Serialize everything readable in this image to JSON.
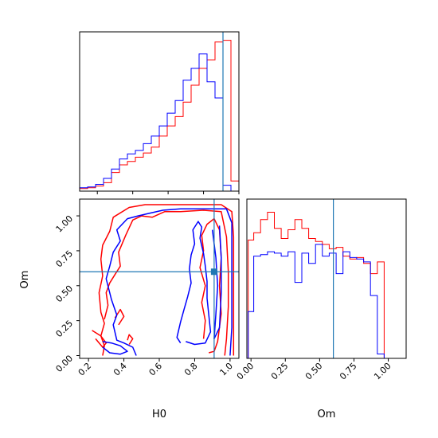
{
  "colors": {
    "series_a": "#ff0000",
    "series_b": "#0000ff",
    "truth": "#1f77b4",
    "axes": "#000000"
  },
  "chart_data": [
    {
      "type": "histogram",
      "panel": "top-left",
      "variable": "H0",
      "truth_value": 0.91,
      "bin_edges": [
        0.1,
        0.145,
        0.19,
        0.235,
        0.28,
        0.325,
        0.37,
        0.415,
        0.46,
        0.505,
        0.55,
        0.595,
        0.64,
        0.685,
        0.73,
        0.775,
        0.82,
        0.865,
        0.91,
        0.955,
        1.0
      ],
      "series": [
        {
          "color_key": "series_a",
          "values": [
            0.3,
            0.4,
            0.6,
            1.0,
            2.2,
            3.1,
            3.5,
            4.0,
            4.5,
            5.2,
            6.5,
            7.7,
            8.8,
            10.5,
            12.5,
            14.5,
            15.5,
            17.6,
            17.8,
            1.2
          ]
        },
        {
          "color_key": "series_b",
          "values": [
            0.4,
            0.5,
            0.8,
            1.5,
            2.6,
            3.8,
            4.4,
            4.8,
            5.6,
            6.5,
            7.7,
            9.2,
            10.7,
            13.1,
            14.5,
            16.2,
            12.9,
            11.0,
            0.7,
            0.0
          ]
        }
      ],
      "xlim": [
        0.1,
        1.0
      ],
      "x_ticks": [
        0.2,
        0.4,
        0.6,
        0.8,
        1.0
      ],
      "ylim": [
        0,
        18.8
      ],
      "grid": false
    },
    {
      "type": "contour",
      "panel": "bottom-left",
      "x_variable": "H0",
      "y_variable": "Om",
      "xlabel": "H0",
      "ylabel": "Om",
      "xlim": [
        0.15,
        1.05
      ],
      "ylim": [
        -0.02,
        1.12
      ],
      "x_ticks": [
        0.2,
        0.4,
        0.6,
        0.8,
        1.0
      ],
      "x_tick_labels": [
        "0.2",
        "0.4",
        "0.6",
        "0.8",
        "1.0"
      ],
      "y_ticks": [
        0.0,
        0.25,
        0.5,
        0.75,
        1.0
      ],
      "y_tick_labels": [
        "0.00",
        "0.25",
        "0.50",
        "0.75",
        "1.00"
      ],
      "truth": {
        "x": 0.91,
        "y": 0.6
      },
      "series": [
        {
          "color_key": "series_a",
          "contours": [
            [
              [
                0.28,
                0.0
              ],
              [
                0.29,
                0.07
              ],
              [
                0.27,
                0.14
              ],
              [
                0.29,
                0.23
              ],
              [
                0.27,
                0.31
              ],
              [
                0.26,
                0.45
              ],
              [
                0.28,
                0.57
              ],
              [
                0.27,
                0.69
              ],
              [
                0.28,
                0.79
              ],
              [
                0.32,
                0.89
              ],
              [
                0.34,
                0.99
              ],
              [
                0.43,
                1.06
              ],
              [
                0.52,
                1.08
              ],
              [
                0.65,
                1.08
              ],
              [
                0.8,
                1.08
              ],
              [
                0.95,
                1.08
              ],
              [
                1.01,
                1.03
              ],
              [
                1.02,
                0.85
              ],
              [
                1.02,
                0.6
              ],
              [
                1.02,
                0.35
              ],
              [
                1.02,
                0.15
              ],
              [
                1.02,
                0.0
              ]
            ],
            [
              [
                0.22,
                0.18
              ],
              [
                0.27,
                0.14
              ],
              [
                0.3,
                0.09
              ],
              [
                0.28,
                0.06
              ],
              [
                0.24,
                0.12
              ]
            ],
            [
              [
                0.29,
                0.26
              ],
              [
                0.31,
                0.36
              ],
              [
                0.3,
                0.45
              ],
              [
                0.32,
                0.52
              ],
              [
                0.35,
                0.58
              ],
              [
                0.38,
                0.64
              ],
              [
                0.37,
                0.74
              ],
              [
                0.41,
                0.86
              ],
              [
                0.45,
                0.97
              ],
              [
                0.5,
                1.0
              ],
              [
                0.56,
                0.99
              ],
              [
                0.63,
                1.03
              ],
              [
                0.72,
                1.03
              ],
              [
                0.85,
                1.04
              ],
              [
                0.95,
                1.03
              ],
              [
                0.98,
                0.85
              ],
              [
                0.99,
                0.6
              ],
              [
                0.99,
                0.35
              ],
              [
                0.98,
                0.12
              ],
              [
                0.97,
                0.0
              ]
            ],
            [
              [
                0.85,
                0.12
              ],
              [
                0.86,
                0.25
              ],
              [
                0.84,
                0.38
              ],
              [
                0.86,
                0.5
              ],
              [
                0.83,
                0.63
              ],
              [
                0.85,
                0.75
              ],
              [
                0.84,
                0.86
              ],
              [
                0.87,
                0.94
              ],
              [
                0.91,
                0.98
              ],
              [
                0.94,
                0.9
              ],
              [
                0.95,
                0.7
              ],
              [
                0.94,
                0.5
              ],
              [
                0.95,
                0.3
              ],
              [
                0.93,
                0.1
              ],
              [
                0.91,
                0.03
              ],
              [
                0.88,
                0.02
              ]
            ],
            [
              [
                0.37,
                0.22
              ],
              [
                0.4,
                0.28
              ],
              [
                0.38,
                0.33
              ],
              [
                0.35,
                0.27
              ]
            ],
            [
              [
                0.43,
                0.08
              ],
              [
                0.45,
                0.12
              ],
              [
                0.43,
                0.15
              ],
              [
                0.42,
                0.11
              ]
            ]
          ]
        },
        {
          "color_key": "series_b",
          "contours": [
            [
              [
                0.47,
                0.0
              ],
              [
                0.45,
                0.06
              ],
              [
                0.4,
                0.09
              ],
              [
                0.36,
                0.11
              ],
              [
                0.34,
                0.22
              ],
              [
                0.36,
                0.29
              ],
              [
                0.33,
                0.4
              ],
              [
                0.3,
                0.55
              ],
              [
                0.32,
                0.64
              ],
              [
                0.34,
                0.74
              ],
              [
                0.38,
                0.82
              ],
              [
                0.36,
                0.9
              ],
              [
                0.42,
                0.98
              ],
              [
                0.48,
                1.0
              ],
              [
                0.55,
                1.02
              ],
              [
                0.62,
                1.04
              ],
              [
                0.72,
                1.05
              ],
              [
                0.85,
                1.05
              ],
              [
                0.98,
                1.05
              ],
              [
                1.01,
                0.95
              ],
              [
                1.01,
                0.8
              ],
              [
                1.01,
                0.6
              ],
              [
                1.01,
                0.4
              ],
              [
                1.01,
                0.2
              ],
              [
                1.0,
                0.0
              ]
            ],
            [
              [
                0.28,
                0.1
              ],
              [
                0.33,
                0.09
              ],
              [
                0.38,
                0.07
              ],
              [
                0.42,
                0.03
              ],
              [
                0.38,
                0.01
              ],
              [
                0.32,
                0.02
              ],
              [
                0.28,
                0.06
              ]
            ],
            [
              [
                0.75,
                0.1
              ],
              [
                0.8,
                0.08
              ],
              [
                0.86,
                0.09
              ],
              [
                0.89,
                0.17
              ],
              [
                0.88,
                0.29
              ],
              [
                0.87,
                0.41
              ],
              [
                0.87,
                0.53
              ],
              [
                0.86,
                0.64
              ],
              [
                0.85,
                0.73
              ],
              [
                0.83,
                0.84
              ],
              [
                0.84,
                0.92
              ],
              [
                0.82,
                0.96
              ],
              [
                0.79,
                0.9
              ],
              [
                0.8,
                0.8
              ],
              [
                0.78,
                0.72
              ],
              [
                0.77,
                0.62
              ],
              [
                0.78,
                0.52
              ],
              [
                0.76,
                0.42
              ],
              [
                0.74,
                0.33
              ],
              [
                0.72,
                0.24
              ],
              [
                0.7,
                0.13
              ],
              [
                0.72,
                0.09
              ]
            ],
            [
              [
                0.9,
                0.9
              ],
              [
                0.92,
                0.7
              ],
              [
                0.93,
                0.5
              ],
              [
                0.92,
                0.3
              ],
              [
                0.91,
                0.12
              ],
              [
                0.94,
                0.2
              ],
              [
                0.95,
                0.45
              ],
              [
                0.95,
                0.7
              ],
              [
                0.94,
                0.93
              ]
            ]
          ]
        }
      ]
    },
    {
      "type": "histogram",
      "panel": "bottom-right",
      "variable": "Om",
      "xlabel": "Om",
      "truth_value": 0.6,
      "bin_edges": [
        -0.02,
        0.02,
        0.07,
        0.12,
        0.17,
        0.22,
        0.27,
        0.32,
        0.37,
        0.42,
        0.47,
        0.52,
        0.57,
        0.62,
        0.67,
        0.72,
        0.77,
        0.82,
        0.87,
        0.92,
        0.97,
        1.02
      ],
      "series": [
        {
          "color_key": "series_a",
          "values": [
            8.1,
            8.6,
            9.5,
            10.0,
            8.9,
            8.2,
            8.8,
            9.5,
            8.9,
            8.2,
            8.0,
            7.8,
            7.5,
            7.6,
            7.0,
            6.8,
            6.9,
            6.5,
            5.8,
            6.6,
            0.0
          ]
        },
        {
          "color_key": "series_b",
          "values": [
            3.2,
            7.0,
            7.1,
            7.3,
            7.2,
            7.0,
            7.3,
            5.2,
            7.2,
            6.5,
            7.8,
            7.0,
            7.2,
            5.8,
            7.3,
            6.9,
            6.8,
            6.6,
            4.3,
            0.3,
            0.0
          ]
        }
      ],
      "xlim": [
        -0.03,
        1.13
      ],
      "x_ticks": [
        0.0,
        0.25,
        0.5,
        0.75,
        1.0
      ],
      "x_tick_labels": [
        "0.00",
        "0.25",
        "0.50",
        "0.75",
        "1.00"
      ],
      "ylim": [
        0,
        10.9
      ],
      "grid": false
    }
  ]
}
